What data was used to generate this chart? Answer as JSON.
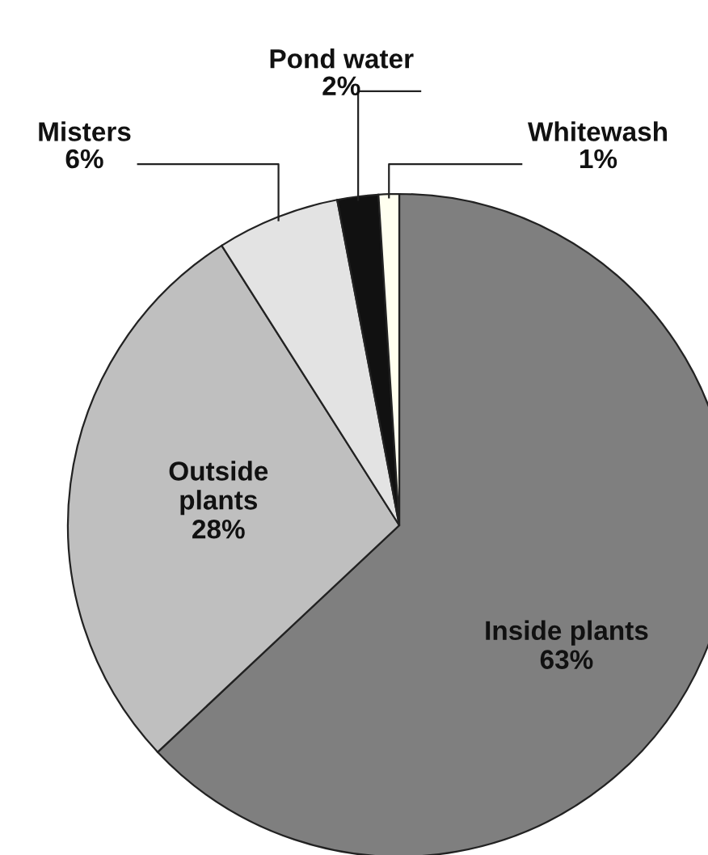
{
  "chart_data": {
    "type": "pie",
    "categories": [
      "Inside plants",
      "Outside plants",
      "Misters",
      "Pond water",
      "Whitewash"
    ],
    "values": [
      63,
      28,
      6,
      2,
      1
    ],
    "colors": [
      "#7f7f7f",
      "#bfbfbf",
      "#e3e3e3",
      "#111111",
      "#fffff0"
    ],
    "value_labels": [
      "63%",
      "28%",
      "6%",
      "2%",
      "1%"
    ]
  }
}
